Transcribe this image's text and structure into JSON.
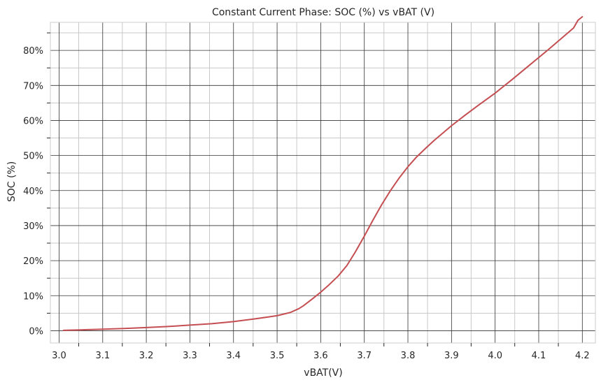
{
  "chart_data": {
    "type": "line",
    "title": "Constant Current Phase: SOC (%) vs vBAT (V)",
    "xlabel": "vBAT(V)",
    "ylabel": "SOC (%)",
    "x_tick_labels": [
      "3.0",
      "3.1",
      "3.2",
      "3.3",
      "3.4",
      "3.5",
      "3.6",
      "3.7",
      "3.8",
      "3.9",
      "4.0",
      "4.1",
      "4.2"
    ],
    "y_tick_labels": [
      "0%",
      "10%",
      "20%",
      "30%",
      "40%",
      "50%",
      "60%",
      "70%",
      "80%"
    ],
    "xlim": [
      2.98,
      4.23
    ],
    "ylim": [
      -3.5,
      88
    ],
    "grid": true,
    "legend": "none",
    "line_color": "#c44e52",
    "series": [
      {
        "x": [
          3.01,
          3.05,
          3.1,
          3.15,
          3.2,
          3.25,
          3.3,
          3.35,
          3.4,
          3.45,
          3.5,
          3.53,
          3.55,
          3.56,
          3.58,
          3.6,
          3.62,
          3.64,
          3.66,
          3.68,
          3.7,
          3.72,
          3.74,
          3.76,
          3.78,
          3.8,
          3.82,
          3.84,
          3.86,
          3.88,
          3.9,
          3.93,
          3.96,
          4.0,
          4.04,
          4.08,
          4.12,
          4.15,
          4.18,
          4.19,
          4.2
        ],
        "y": [
          0.1,
          0.25,
          0.45,
          0.65,
          0.9,
          1.2,
          1.6,
          2.0,
          2.6,
          3.4,
          4.3,
          5.2,
          6.3,
          7.1,
          9.0,
          11.0,
          13.2,
          15.6,
          18.6,
          22.6,
          27.0,
          31.6,
          36.0,
          40.0,
          43.6,
          46.8,
          49.6,
          52.0,
          54.3,
          56.4,
          58.5,
          61.4,
          64.2,
          67.8,
          71.8,
          75.9,
          80.0,
          83.2,
          86.4,
          88.6,
          89.6
        ]
      }
    ]
  }
}
